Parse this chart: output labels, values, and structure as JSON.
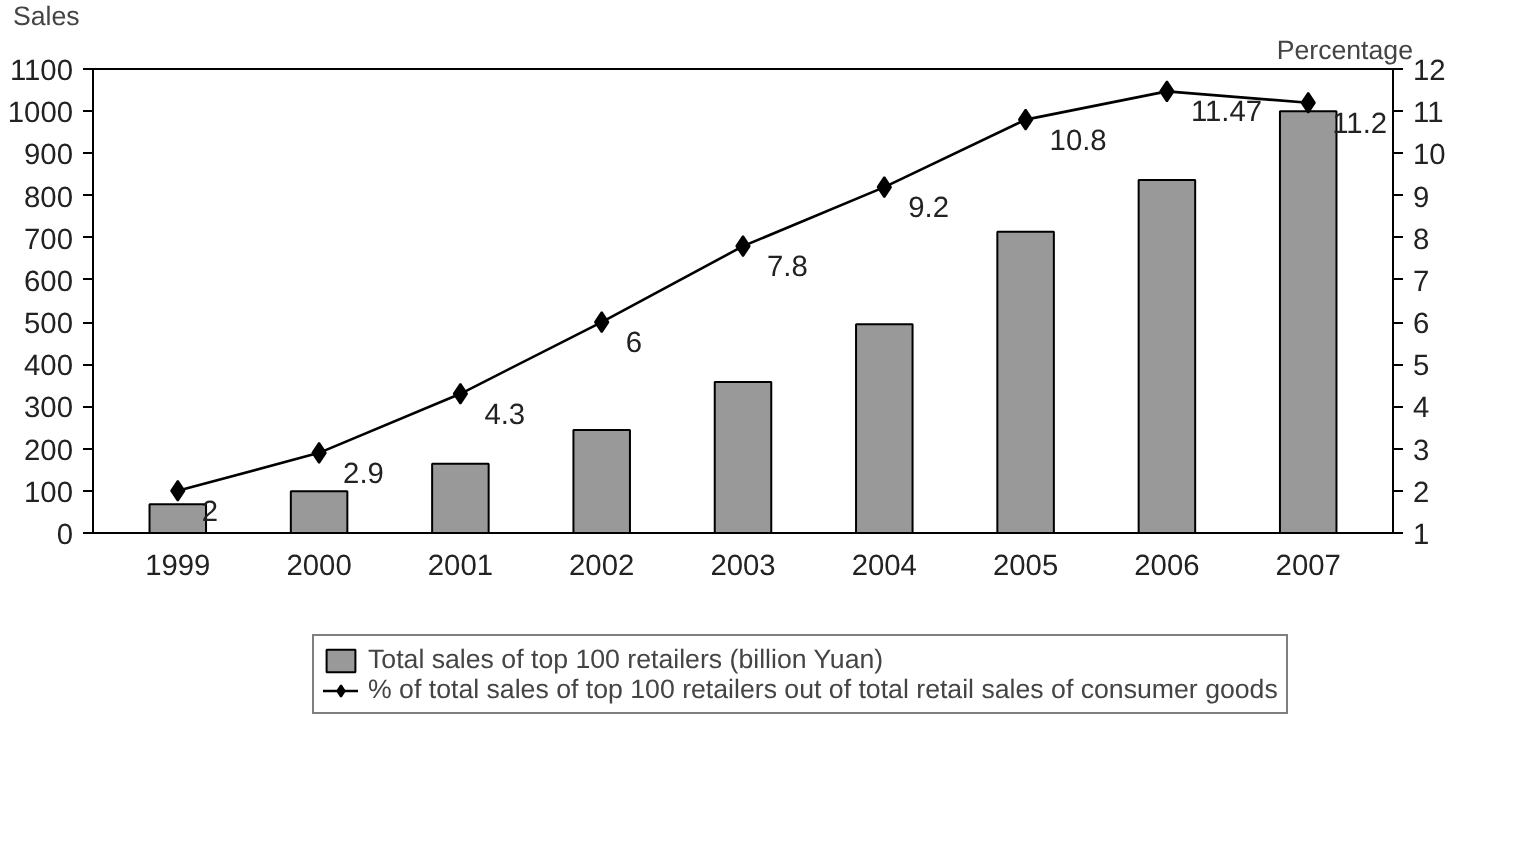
{
  "chart_data": {
    "type": "bar",
    "ylabel": "Sales",
    "y2label": "Percentage",
    "categories": [
      "1999",
      "2000",
      "2001",
      "2002",
      "2003",
      "2004",
      "2005",
      "2006",
      "2007"
    ],
    "series": [
      {
        "name": "Total sales of top 100 retailers (billion Yuan)",
        "color": "#999999",
        "values": [
          68,
          99,
          164,
          244,
          358,
          495,
          714,
          837,
          1000
        ]
      },
      {
        "name": "% of total sales of top 100 retailers out of total retail sales of consumer goods",
        "type": "line",
        "axis": "y2",
        "color": "#000000",
        "values": [
          2,
          2.9,
          4.3,
          6,
          7.8,
          9.2,
          10.8,
          11.47,
          11.2
        ],
        "value_labels": [
          "2",
          "2.9",
          "4.3",
          "6",
          "7.8",
          "9.2",
          "10.8",
          "11.47",
          "11.2"
        ]
      }
    ],
    "ylim": [
      0,
      1100
    ],
    "yticks": [
      0,
      100,
      200,
      300,
      400,
      500,
      600,
      700,
      800,
      900,
      1000,
      1100
    ],
    "y2lim": [
      1,
      12
    ],
    "y2ticks": [
      1,
      2,
      3,
      4,
      5,
      6,
      7,
      8,
      9,
      10,
      11,
      12
    ],
    "grid": false,
    "legend": "bottom",
    "marker": "diamond",
    "line_style": "solid"
  }
}
